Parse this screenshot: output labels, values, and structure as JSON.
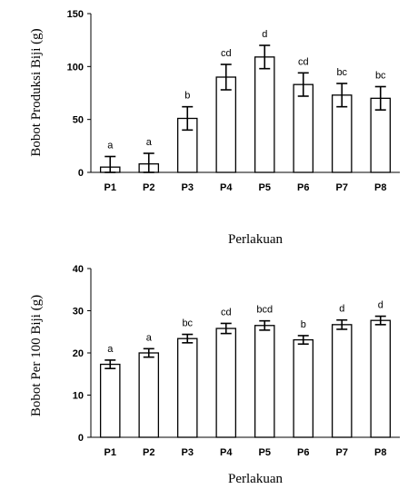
{
  "chart_data": [
    {
      "type": "bar",
      "categories": [
        "P1",
        "P2",
        "P3",
        "P4",
        "P5",
        "P6",
        "P7",
        "P8"
      ],
      "values": [
        5,
        8,
        51,
        90,
        109,
        83,
        73,
        70
      ],
      "error": [
        10,
        10,
        11,
        12,
        11,
        11,
        11,
        11
      ],
      "significance": [
        "a",
        "a",
        "b",
        "cd",
        "d",
        "cd",
        "bc",
        "bc"
      ],
      "ylim": [
        0,
        150
      ],
      "yticks": [
        "0",
        "50",
        "100",
        "150"
      ],
      "xlabel": "Perlakuan",
      "ylabel": "Bobot Produksi Biji (g)",
      "grid": false,
      "bar_fill": "#ffffff",
      "bar_stroke": "#000000"
    },
    {
      "type": "bar",
      "categories": [
        "P1",
        "P2",
        "P3",
        "P4",
        "P5",
        "P6",
        "P7",
        "P8"
      ],
      "values": [
        17.3,
        20.0,
        23.4,
        25.8,
        26.5,
        23.1,
        26.7,
        27.7
      ],
      "error": [
        1.0,
        1.0,
        1.0,
        1.2,
        1.1,
        1.0,
        1.1,
        1.0
      ],
      "significance": [
        "a",
        "a",
        "bc",
        "cd",
        "bcd",
        "b",
        "d",
        "d"
      ],
      "ylim": [
        0,
        40
      ],
      "yticks": [
        "0",
        "10",
        "20",
        "30",
        "40"
      ],
      "xlabel": "Perlakuan",
      "ylabel": "Bobot Per 100 Biji (g)",
      "grid": false,
      "bar_fill": "#ffffff",
      "bar_stroke": "#000000"
    }
  ]
}
